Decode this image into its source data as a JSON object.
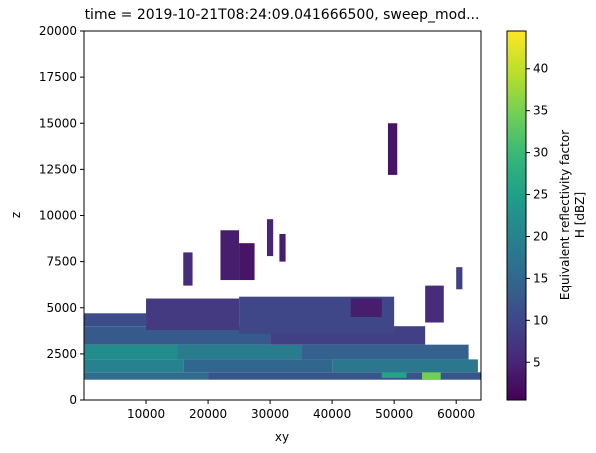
{
  "chart_data": {
    "type": "heatmap",
    "title": "time = 2019-10-21T08:24:09.041666500, sweep_mod...",
    "xlabel": "xy",
    "ylabel": "z",
    "xlim": [
      0,
      64000
    ],
    "ylim": [
      0,
      20000
    ],
    "xticks": [
      10000,
      20000,
      30000,
      40000,
      50000,
      60000
    ],
    "xtick_labels": [
      "10000",
      "20000",
      "30000",
      "40000",
      "50000",
      "60000"
    ],
    "yticks": [
      0,
      2500,
      5000,
      7500,
      10000,
      12500,
      15000,
      17500,
      20000
    ],
    "ytick_labels": [
      "0",
      "2500",
      "5000",
      "7500",
      "10000",
      "12500",
      "15000",
      "17500",
      "20000"
    ],
    "colorbar": {
      "label_line1": "Equivalent reflectivity factor",
      "label_line2": "H [dBZ]",
      "range": [
        0.5,
        44.5
      ],
      "ticks": [
        5,
        10,
        15,
        20,
        25,
        30,
        35,
        40
      ],
      "tick_labels": [
        "5",
        "10",
        "15",
        "20",
        "25",
        "30",
        "35",
        "40"
      ],
      "colormap": "viridis",
      "stops": [
        "#440154",
        "#482878",
        "#3e4989",
        "#31688e",
        "#26828e",
        "#1f9e89",
        "#35b779",
        "#6ece58",
        "#b5de2b",
        "#fde725"
      ]
    },
    "grid": false,
    "cells": [
      {
        "x0": 0,
        "x1": 20000,
        "z0": 1100,
        "z1": 1500,
        "v": 16
      },
      {
        "x0": 20000,
        "x1": 64000,
        "z0": 1100,
        "z1": 1500,
        "v": 12
      },
      {
        "x0": 54500,
        "x1": 57500,
        "z0": 1100,
        "z1": 1700,
        "v": 35
      },
      {
        "x0": 48000,
        "x1": 52000,
        "z0": 1200,
        "z1": 1700,
        "v": 26
      },
      {
        "x0": 0,
        "x1": 16000,
        "z0": 1500,
        "z1": 2200,
        "v": 20
      },
      {
        "x0": 16000,
        "x1": 40000,
        "z0": 1500,
        "z1": 2200,
        "v": 15
      },
      {
        "x0": 40000,
        "x1": 63500,
        "z0": 1500,
        "z1": 2200,
        "v": 18
      },
      {
        "x0": 0,
        "x1": 15000,
        "z0": 2200,
        "z1": 3000,
        "v": 22
      },
      {
        "x0": 15000,
        "x1": 35000,
        "z0": 2200,
        "z1": 3000,
        "v": 19
      },
      {
        "x0": 35000,
        "x1": 62000,
        "z0": 2200,
        "z1": 3000,
        "v": 14
      },
      {
        "x0": 0,
        "x1": 30000,
        "z0": 3000,
        "z1": 4000,
        "v": 13
      },
      {
        "x0": 30000,
        "x1": 55000,
        "z0": 3000,
        "z1": 4000,
        "v": 9
      },
      {
        "x0": 0,
        "x1": 10000,
        "z0": 4000,
        "z1": 4700,
        "v": 11
      },
      {
        "x0": 10000,
        "x1": 25000,
        "z0": 3800,
        "z1": 5500,
        "v": 8
      },
      {
        "x0": 25000,
        "x1": 50000,
        "z0": 3600,
        "z1": 5600,
        "v": 10
      },
      {
        "x0": 43000,
        "x1": 48000,
        "z0": 4500,
        "z1": 5500,
        "v": 4
      },
      {
        "x0": 55000,
        "x1": 58000,
        "z0": 4200,
        "z1": 6200,
        "v": 6
      },
      {
        "x0": 60000,
        "x1": 61000,
        "z0": 6000,
        "z1": 7200,
        "v": 9
      },
      {
        "x0": 16000,
        "x1": 17500,
        "z0": 6200,
        "z1": 8000,
        "v": 6
      },
      {
        "x0": 22000,
        "x1": 25000,
        "z0": 6500,
        "z1": 9200,
        "v": 4
      },
      {
        "x0": 25000,
        "x1": 27500,
        "z0": 6500,
        "z1": 8500,
        "v": 3
      },
      {
        "x0": 29500,
        "x1": 30500,
        "z0": 7800,
        "z1": 9800,
        "v": 5
      },
      {
        "x0": 31500,
        "x1": 32500,
        "z0": 7500,
        "z1": 9000,
        "v": 4
      },
      {
        "x0": 49000,
        "x1": 50500,
        "z0": 12200,
        "z1": 15000,
        "v": 3
      }
    ]
  }
}
